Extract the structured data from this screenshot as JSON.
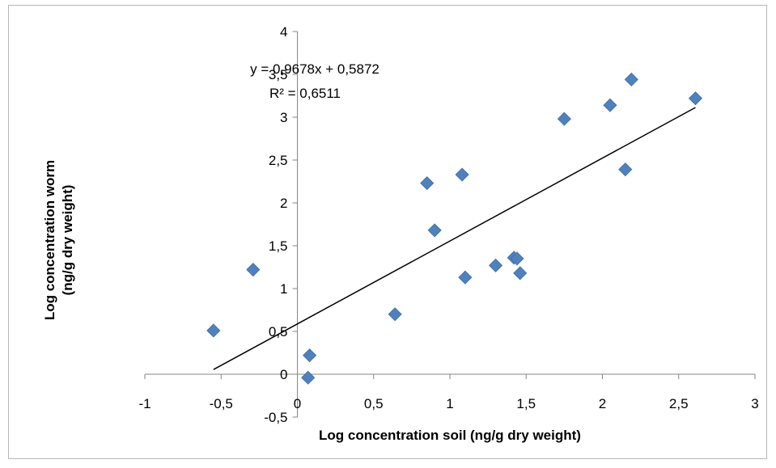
{
  "chart_data": {
    "type": "scatter",
    "title": "",
    "xlabel": "Log concentration soil (ng/g dry weight)",
    "ylabel_line1": "Log concentration worm",
    "ylabel_line2": "(ng/g dry weight)",
    "xlim": [
      -1,
      3
    ],
    "ylim": [
      -0.5,
      4
    ],
    "x_ticks": [
      -1,
      -0.5,
      0,
      0.5,
      1,
      1.5,
      2,
      2.5,
      3
    ],
    "x_tick_labels": [
      "-1",
      "-0,5",
      "0",
      "0,5",
      "1",
      "1,5",
      "2",
      "2,5",
      "3"
    ],
    "y_ticks": [
      -0.5,
      0,
      0.5,
      1,
      1.5,
      2,
      2.5,
      3,
      3.5,
      4
    ],
    "y_tick_labels": [
      "-0,5",
      "0",
      "0,5",
      "1",
      "1,5",
      "2",
      "2,5",
      "3",
      "3,5",
      "4"
    ],
    "marker_color": "#4f81bd",
    "grid": false,
    "points": [
      {
        "x": -0.55,
        "y": 0.51
      },
      {
        "x": -0.29,
        "y": 1.22
      },
      {
        "x": 0.07,
        "y": -0.04
      },
      {
        "x": 0.08,
        "y": 0.22
      },
      {
        "x": 0.64,
        "y": 0.7
      },
      {
        "x": 0.85,
        "y": 2.23
      },
      {
        "x": 0.9,
        "y": 1.68
      },
      {
        "x": 1.08,
        "y": 2.33
      },
      {
        "x": 1.1,
        "y": 1.13
      },
      {
        "x": 1.3,
        "y": 1.27
      },
      {
        "x": 1.42,
        "y": 1.36
      },
      {
        "x": 1.44,
        "y": 1.35
      },
      {
        "x": 1.46,
        "y": 1.18
      },
      {
        "x": 1.75,
        "y": 2.98
      },
      {
        "x": 2.05,
        "y": 3.14
      },
      {
        "x": 2.15,
        "y": 2.39
      },
      {
        "x": 2.19,
        "y": 3.44
      },
      {
        "x": 2.61,
        "y": 3.22
      }
    ],
    "trendline": {
      "slope": 0.9678,
      "intercept": 0.5872,
      "x_start": -0.55,
      "x_end": 2.61
    },
    "equation_label": "y = 0,9678x + 0,5872",
    "r2_label": "R² = 0,6511"
  }
}
